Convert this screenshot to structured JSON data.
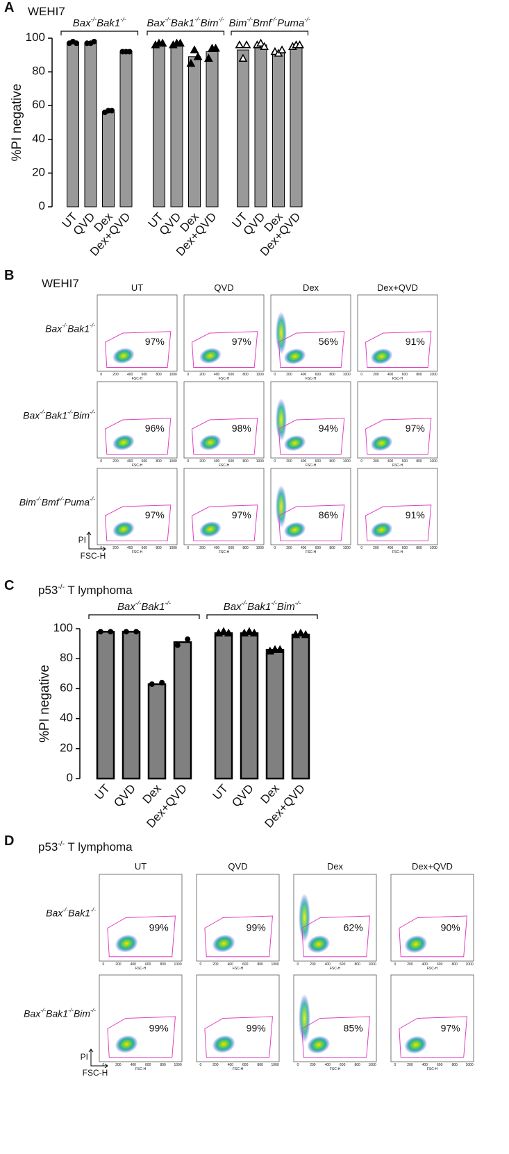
{
  "chart_data": [
    {
      "type": "bar",
      "letter": "A",
      "title": "WEHI7",
      "y_label": "%PI negative",
      "ylim": [
        0,
        100
      ],
      "yticks": [
        0,
        20,
        40,
        60,
        80,
        100
      ],
      "color": "#999999",
      "groups": [
        {
          "name": "Bax-/-Bak1-/-",
          "marker": "circle",
          "categories": [
            "UT",
            "QVD",
            "Dex",
            "Dex+QVD"
          ],
          "values": [
            97,
            97,
            56,
            92
          ],
          "points": [
            [
              97,
              98,
              97
            ],
            [
              97,
              97,
              98
            ],
            [
              56,
              57,
              57
            ],
            [
              92,
              92,
              92
            ]
          ]
        },
        {
          "name": "Bax-/-Bak1-/-Bim-/-",
          "marker": "triangle",
          "categories": [
            "UT",
            "QVD",
            "Dex",
            "Dex+QVD"
          ],
          "values": [
            96,
            96,
            89,
            92
          ],
          "points": [
            [
              96,
              97,
              97
            ],
            [
              96,
              97,
              97
            ],
            [
              85,
              93,
              89
            ],
            [
              88,
              94,
              94
            ]
          ]
        },
        {
          "name": "Bim-/-Bmf-/-Puma-/-",
          "marker": "open-triangle",
          "categories": [
            "UT",
            "QVD",
            "Dex",
            "Dex+QVD"
          ],
          "values": [
            93,
            96,
            92,
            95
          ],
          "points": [
            [
              96,
              88,
              96
            ],
            [
              96,
              97,
              95
            ],
            [
              92,
              91,
              93
            ],
            [
              95,
              96,
              96
            ]
          ]
        }
      ]
    },
    {
      "type": "bar",
      "letter": "C",
      "title": "p53-/- T lymphoma",
      "y_label": "%PI negative",
      "ylim": [
        0,
        100
      ],
      "yticks": [
        0,
        20,
        40,
        60,
        80,
        100
      ],
      "color": "#808080",
      "groups": [
        {
          "name": "Bax-/-Bak1-/-",
          "marker": "circle",
          "categories": [
            "UT",
            "QVD",
            "Dex",
            "Dex+QVD"
          ],
          "values": [
            98,
            98,
            63,
            91
          ],
          "points": [
            [
              98,
              98
            ],
            [
              98,
              98
            ],
            [
              63,
              64
            ],
            [
              89,
              93
            ]
          ]
        },
        {
          "name": "Bax-/-Bak1-/-Bim-/-",
          "marker": "triangle",
          "categories": [
            "UT",
            "QVD",
            "Dex",
            "Dex+QVD"
          ],
          "values": [
            97,
            97,
            86,
            96
          ],
          "points": [
            [
              97,
              98,
              97
            ],
            [
              97,
              98,
              97
            ],
            [
              85,
              86,
              86
            ],
            [
              96,
              97,
              96
            ]
          ]
        }
      ]
    }
  ],
  "flow_panels": [
    {
      "letter": "B",
      "title": "WEHI7",
      "columns": [
        "UT",
        "QVD",
        "Dex",
        "Dex+QVD"
      ],
      "x_axis": "FSC-H",
      "y_axis": "PI",
      "x_ticks": [
        "0",
        "200",
        "400",
        "600",
        "800",
        "1000"
      ],
      "rows": [
        {
          "label": "Bax-/-Bak1-/-",
          "percentages": [
            "97%",
            "97%",
            "56%",
            "91%"
          ]
        },
        {
          "label": "Bax-/-Bak1-/-Bim-/-",
          "percentages": [
            "96%",
            "98%",
            "94%",
            "97%"
          ]
        },
        {
          "label": "Bim-/-Bmf-/-Puma-/-",
          "percentages": [
            "97%",
            "97%",
            "86%",
            "91%"
          ]
        }
      ]
    },
    {
      "letter": "D",
      "title": "p53-/- T lymphoma",
      "columns": [
        "UT",
        "QVD",
        "Dex",
        "Dex+QVD"
      ],
      "x_axis": "FSC-H",
      "y_axis": "PI",
      "x_ticks": [
        "0",
        "200",
        "400",
        "600",
        "800",
        "1000"
      ],
      "rows": [
        {
          "label": "Bax-/-Bak1-/-",
          "percentages": [
            "99%",
            "99%",
            "62%",
            "90%"
          ]
        },
        {
          "label": "Bax-/-Bak1-/-Bim-/-",
          "percentages": [
            "99%",
            "99%",
            "85%",
            "97%"
          ]
        }
      ]
    }
  ]
}
